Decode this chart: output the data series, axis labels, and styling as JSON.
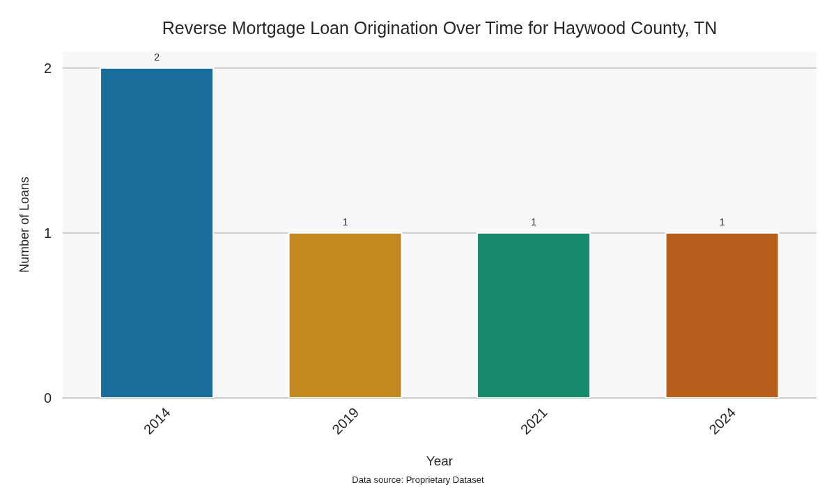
{
  "chart_data": {
    "type": "bar",
    "title": "Reverse Mortgage Loan Origination Over Time for Haywood County, TN",
    "xlabel": "Year",
    "ylabel": "Number of Loans",
    "categories": [
      "2014",
      "2019",
      "2021",
      "2024"
    ],
    "values": [
      2,
      1,
      1,
      1
    ],
    "colors": [
      "#186d9b",
      "#c38820",
      "#168a6a",
      "#b95f1d"
    ],
    "ylim": [
      0,
      2.1
    ],
    "yticks": [
      0,
      1,
      2
    ],
    "grid": "y",
    "data_labels": true,
    "annotations": [
      "Data source: Proprietary Dataset"
    ]
  }
}
